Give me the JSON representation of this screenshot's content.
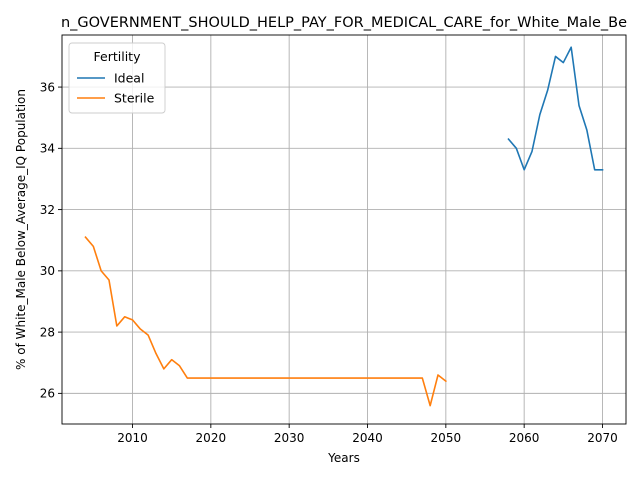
{
  "chart_data": {
    "type": "line",
    "title": "n_GOVERNMENT_SHOULD_HELP_PAY_FOR_MEDICAL_CARE_for_White_Male_Be",
    "xlabel": "Years",
    "ylabel": "% of White_Male Below_Average_IQ Population",
    "xlim": [
      2001,
      2073
    ],
    "ylim": [
      25.0,
      37.7
    ],
    "xticks": [
      2010,
      2020,
      2030,
      2040,
      2050,
      2060,
      2070
    ],
    "yticks": [
      26,
      28,
      30,
      32,
      34,
      36
    ],
    "grid": true,
    "legend": {
      "title": "Fertility",
      "placement": "top-left"
    },
    "series": [
      {
        "name": "Ideal",
        "color": "#1f77b4",
        "x": [
          2058,
          2059,
          2060,
          2061,
          2062,
          2063,
          2064,
          2065,
          2066,
          2067,
          2068,
          2069,
          2070
        ],
        "y": [
          34.3,
          34.0,
          33.3,
          33.9,
          35.1,
          35.9,
          37.0,
          36.8,
          37.3,
          35.4,
          34.6,
          33.3,
          33.3
        ]
      },
      {
        "name": "Sterile",
        "color": "#ff7f0e",
        "x": [
          2004,
          2005,
          2006,
          2007,
          2008,
          2009,
          2010,
          2011,
          2012,
          2013,
          2014,
          2015,
          2016,
          2017,
          2018,
          2019,
          2020,
          2021,
          2022,
          2023,
          2024,
          2025,
          2026,
          2027,
          2028,
          2029,
          2030,
          2031,
          2032,
          2033,
          2034,
          2035,
          2036,
          2037,
          2038,
          2039,
          2040,
          2041,
          2042,
          2043,
          2044,
          2045,
          2046,
          2047,
          2048,
          2049,
          2050
        ],
        "y": [
          31.1,
          30.8,
          30.0,
          29.7,
          28.2,
          28.5,
          28.4,
          28.1,
          27.9,
          27.3,
          26.8,
          27.1,
          26.9,
          26.5,
          26.5,
          26.5,
          26.5,
          26.5,
          26.5,
          26.5,
          26.5,
          26.5,
          26.5,
          26.5,
          26.5,
          26.5,
          26.5,
          26.5,
          26.5,
          26.5,
          26.5,
          26.5,
          26.5,
          26.5,
          26.5,
          26.5,
          26.5,
          26.5,
          26.5,
          26.5,
          26.5,
          26.5,
          26.5,
          26.5,
          25.6,
          26.6,
          26.4
        ]
      }
    ]
  }
}
